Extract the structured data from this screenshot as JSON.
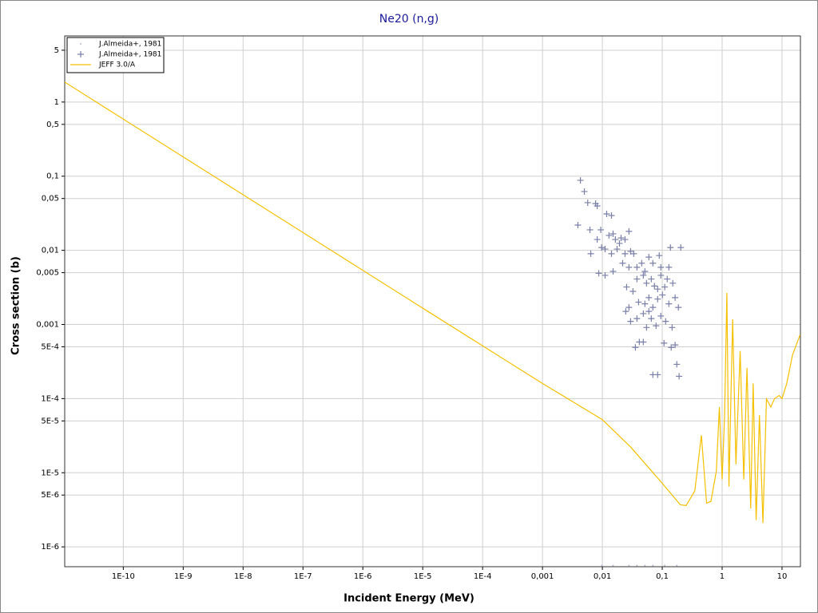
{
  "chart_data": {
    "type": "scatter",
    "title": "Ne20 (n,g)",
    "x_label": "Incident Energy (MeV)",
    "y_label": "Cross section (b)",
    "log_x": true,
    "log_y": true,
    "grid": true,
    "legend": "top-left",
    "xlim": [
      1.05e-11,
      20.3
    ],
    "ylim": [
      5.4e-07,
      7.8
    ],
    "xticks": [
      {
        "value": 1e-10,
        "label": "1E-10"
      },
      {
        "value": 1e-09,
        "label": "1E-9"
      },
      {
        "value": 1e-08,
        "label": "1E-8"
      },
      {
        "value": 1e-07,
        "label": "1E-7"
      },
      {
        "value": 1e-06,
        "label": "1E-6"
      },
      {
        "value": 1e-05,
        "label": "1E-5"
      },
      {
        "value": 0.0001,
        "label": "1E-4"
      },
      {
        "value": 0.001,
        "label": "0,001"
      },
      {
        "value": 0.01,
        "label": "0,01"
      },
      {
        "value": 0.1,
        "label": "0,1"
      },
      1,
      10
    ],
    "yticks": [
      5,
      1,
      {
        "value": 0.5,
        "label": "0,5"
      },
      {
        "value": 0.1,
        "label": "0,1"
      },
      {
        "value": 0.05,
        "label": "0,05"
      },
      {
        "value": 0.01,
        "label": "0,01"
      },
      {
        "value": 0.005,
        "label": "0,005"
      },
      {
        "value": 0.001,
        "label": "0,001"
      },
      {
        "value": 0.0005,
        "label": "5E-4"
      },
      {
        "value": 0.0001,
        "label": "1E-4"
      },
      {
        "value": 5e-05,
        "label": "5E-5"
      },
      {
        "value": 1e-05,
        "label": "1E-5"
      },
      {
        "value": 5e-06,
        "label": "5E-6"
      },
      {
        "value": 1e-06,
        "label": "1E-6"
      }
    ],
    "series": [
      {
        "name": "J.Almeida+, 1981",
        "type": "scatter",
        "marker": "dot",
        "color": "#b8bcd0",
        "x": [
          0.0098,
          0.0151,
          0.0278,
          0.0378,
          0.0513,
          0.0697,
          0.11,
          0.175
        ],
        "values": [
          5.6e-07,
          5.6e-07,
          5.6e-07,
          5.6e-07,
          5.6e-07,
          5.6e-07,
          5.6e-07,
          5.6e-07
        ]
      },
      {
        "name": "J.Almeida+, 1981",
        "type": "scatter",
        "marker": "plus",
        "color": "#7a7fa8",
        "x": [
          0.0043,
          0.005,
          0.0057,
          0.0039,
          0.0077,
          0.0082,
          0.0062,
          0.0094,
          0.0118,
          0.0142,
          0.0064,
          0.0082,
          0.0097,
          0.0129,
          0.0151,
          0.0165,
          0.0193,
          0.0205,
          0.0239,
          0.0278,
          0.0111,
          0.0142,
          0.0176,
          0.0239,
          0.0296,
          0.0334,
          0.0087,
          0.0151,
          0.0218,
          0.0278,
          0.0378,
          0.0454,
          0.0513,
          0.0598,
          0.0697,
          0.0891,
          0.0947,
          0.137,
          0.204,
          0.129,
          0.0378,
          0.0483,
          0.0546,
          0.0656,
          0.0741,
          0.0838,
          0.0947,
          0.11,
          0.121,
          0.15,
          0.0324,
          0.0402,
          0.0513,
          0.0598,
          0.0697,
          0.0838,
          0.1007,
          0.129,
          0.164,
          0.186,
          0.0246,
          0.0296,
          0.0378,
          0.0483,
          0.0546,
          0.0656,
          0.0788,
          0.0947,
          0.114,
          0.146,
          0.0356,
          0.0414,
          0.0483,
          0.107,
          0.141,
          0.164,
          0.0697,
          0.0838,
          0.175,
          0.191,
          0.0254,
          0.0278,
          0.0598,
          0.0111
        ],
        "values": [
          0.0879,
          0.0621,
          0.0439,
          0.0219,
          0.0428,
          0.0397,
          0.0189,
          0.0189,
          0.031,
          0.0295,
          0.009,
          0.014,
          0.0109,
          0.0159,
          0.0167,
          0.014,
          0.0124,
          0.0147,
          0.014,
          0.018,
          0.0104,
          0.009,
          0.0104,
          0.009,
          0.0097,
          0.009,
          0.0049,
          0.0052,
          0.0067,
          0.0059,
          0.0059,
          0.0067,
          0.0052,
          0.0081,
          0.0067,
          0.0085,
          0.0059,
          0.0109,
          0.0109,
          0.0059,
          0.0041,
          0.0046,
          0.0036,
          0.0041,
          0.0033,
          0.003,
          0.0046,
          0.0032,
          0.0041,
          0.0036,
          0.0028,
          0.002,
          0.0019,
          0.0023,
          0.0017,
          0.0022,
          0.0025,
          0.0019,
          0.0023,
          0.0017,
          0.0015,
          0.0011,
          0.0012,
          0.0014,
          0.00091,
          0.0012,
          0.00096,
          0.0013,
          0.0011,
          0.00091,
          0.00049,
          0.00058,
          0.00058,
          0.00056,
          0.00049,
          0.00053,
          0.00021,
          0.00021,
          0.00029,
          0.0002,
          0.0032,
          0.0017,
          0.0015,
          0.0046
        ]
      },
      {
        "name": "JEFF 3.0/A",
        "type": "line",
        "color": "#f5c000",
        "x": [
          1.05e-11,
          1e-05,
          0.001,
          0.01,
          0.03,
          0.1,
          0.2,
          0.25,
          0.35,
          0.45,
          0.55,
          0.65,
          0.8,
          0.9,
          1.0,
          1.1,
          1.2,
          1.3,
          1.5,
          1.7,
          2.0,
          2.3,
          2.6,
          3.0,
          3.3,
          3.7,
          4.2,
          4.8,
          5.5,
          6.5,
          7.5,
          9,
          10,
          12,
          15,
          20
        ],
        "values": [
          1.86,
          0.00166,
          0.00016,
          5.2e-05,
          2.2e-05,
          7.2e-06,
          3.7e-06,
          3.6e-06,
          5.7e-06,
          3.2e-05,
          3.9e-06,
          4.1e-06,
          1.05e-05,
          7.7e-05,
          8.1e-06,
          6e-05,
          0.00266,
          6.5e-06,
          0.00118,
          1.3e-05,
          0.00044,
          8.1e-06,
          0.00026,
          3.3e-06,
          0.00016,
          2.3e-06,
          6e-05,
          2.1e-06,
          9.9e-05,
          7.7e-05,
          0.0001,
          0.00011,
          0.0001,
          0.00016,
          0.00039,
          0.00072
        ]
      }
    ]
  }
}
